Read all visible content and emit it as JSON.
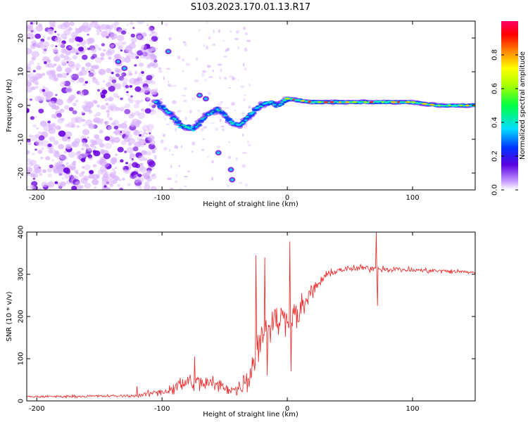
{
  "title": "S103.2023.170.01.13.R17",
  "colors": {
    "line": "#ee2222",
    "axis": "#000000",
    "spectrogram_low": "#d9b3ff",
    "spectrogram_mid": "#6a00e0",
    "ridge_core": "#ff2a2a"
  },
  "chart_data": [
    {
      "type": "heatmap",
      "name": "spectrogram",
      "xlabel": "Height of straight line (km)",
      "ylabel": "Frequency (Hz)",
      "xlim": [
        -208,
        150
      ],
      "ylim": [
        -25,
        25
      ],
      "xticks": [
        -200,
        -100,
        0,
        100
      ],
      "xtick_labels": [
        "-200",
        "-100",
        "0",
        "100"
      ],
      "yticks": [
        20,
        10,
        0,
        -10,
        -20
      ],
      "ytick_labels": [
        "20",
        "10",
        "0",
        "-10",
        "-20"
      ],
      "colorbar": {
        "label": "Normalized spectral amplitude",
        "range": [
          0,
          1
        ],
        "ticks": [
          0.0,
          0.2,
          0.4,
          0.6,
          0.8
        ],
        "tick_labels": [
          "0.0",
          "0.2",
          "0.4",
          "0.6",
          "0.8"
        ]
      },
      "noise_region_x": [
        -208,
        -105
      ],
      "ridge": {
        "x": [
          -105,
          -95,
          -85,
          -75,
          -65,
          -55,
          -45,
          -38,
          -30,
          -22,
          -15,
          -8,
          0,
          20,
          60,
          100,
          120,
          150
        ],
        "freq": [
          1,
          -2,
          -6,
          -7,
          -3,
          -1,
          -5,
          -6,
          -3,
          0,
          1,
          0,
          2,
          1,
          1,
          1,
          0,
          0
        ]
      }
    },
    {
      "type": "line",
      "name": "snr",
      "xlabel": "Height of straight line (km)",
      "ylabel": "SNR (10 * v/v)",
      "xlim": [
        -208,
        150
      ],
      "ylim": [
        0,
        400
      ],
      "xticks": [
        -200,
        -100,
        0,
        100
      ],
      "xtick_labels": [
        "-200",
        "-100",
        "0",
        "100"
      ],
      "yticks": [
        0,
        100,
        200,
        300,
        400
      ],
      "ytick_labels": [
        "0",
        "100",
        "200",
        "300",
        "400"
      ],
      "envelope": {
        "x": [
          -208,
          -120,
          -95,
          -80,
          -60,
          -40,
          -30,
          -22,
          -15,
          -8,
          0,
          10,
          20,
          30,
          40,
          60,
          100,
          150
        ],
        "mean": [
          10,
          12,
          25,
          45,
          40,
          25,
          60,
          150,
          180,
          190,
          200,
          210,
          260,
          295,
          310,
          315,
          310,
          305
        ],
        "spread": [
          4,
          5,
          20,
          35,
          30,
          20,
          50,
          80,
          70,
          60,
          55,
          50,
          30,
          15,
          12,
          12,
          10,
          8
        ]
      },
      "spikes": [
        {
          "x": -120,
          "y": 35
        },
        {
          "x": -74,
          "y": 105
        },
        {
          "x": -25,
          "y": 345
        },
        {
          "x": -18,
          "y": 340
        },
        {
          "x": -16,
          "y": 60
        },
        {
          "x": 2,
          "y": 378
        },
        {
          "x": 3,
          "y": 70
        },
        {
          "x": 71,
          "y": 400
        },
        {
          "x": 72,
          "y": 225
        }
      ]
    }
  ]
}
